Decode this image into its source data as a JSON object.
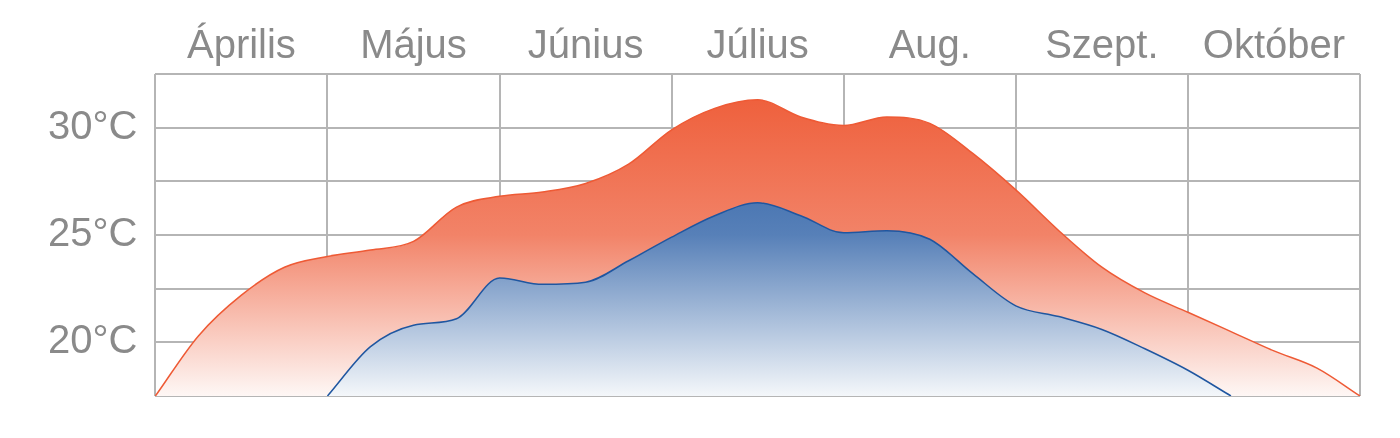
{
  "chart_data": {
    "type": "area",
    "categories": [
      null,
      null,
      "Április",
      null,
      null,
      null,
      "Május",
      null,
      null,
      null,
      "Június",
      null,
      null,
      null,
      "Július",
      null,
      null,
      null,
      "Aug.",
      null,
      null,
      null,
      "Szept.",
      null,
      null,
      null,
      "Október",
      null,
      null
    ],
    "ylim": [
      17.5,
      32.5
    ],
    "yticks": [
      {
        "value": 17.5,
        "label": null
      },
      {
        "value": 20,
        "label": "20°C"
      },
      {
        "value": 22.5,
        "label": null
      },
      {
        "value": 25,
        "label": "25°C"
      },
      {
        "value": 27.5,
        "label": null
      },
      {
        "value": 30,
        "label": "30°C"
      },
      {
        "value": 32.5,
        "label": null
      }
    ],
    "grid": true,
    "legend": false,
    "marker": "none",
    "series": [
      {
        "color": "#1f56a0",
        "values": [
          null,
          null,
          null,
          null,
          17.5,
          19.8,
          20.8,
          21.1,
          23.0,
          22.7,
          22.8,
          23.8,
          24.9,
          25.9,
          26.5,
          25.9,
          25.1,
          25.2,
          24.8,
          23.2,
          21.7,
          21.2,
          20.6,
          19.7,
          18.7,
          17.5,
          null,
          null,
          null
        ]
      },
      {
        "color": "#ee5a35",
        "values": [
          17.5,
          20.3,
          22.2,
          23.5,
          24.0,
          24.3,
          24.7,
          26.3,
          26.8,
          27.0,
          27.4,
          28.3,
          29.9,
          30.9,
          31.3,
          30.5,
          30.1,
          30.5,
          30.2,
          28.8,
          27.1,
          25.2,
          23.5,
          22.3,
          21.4,
          20.5,
          19.6,
          18.8,
          17.5
        ]
      }
    ]
  }
}
